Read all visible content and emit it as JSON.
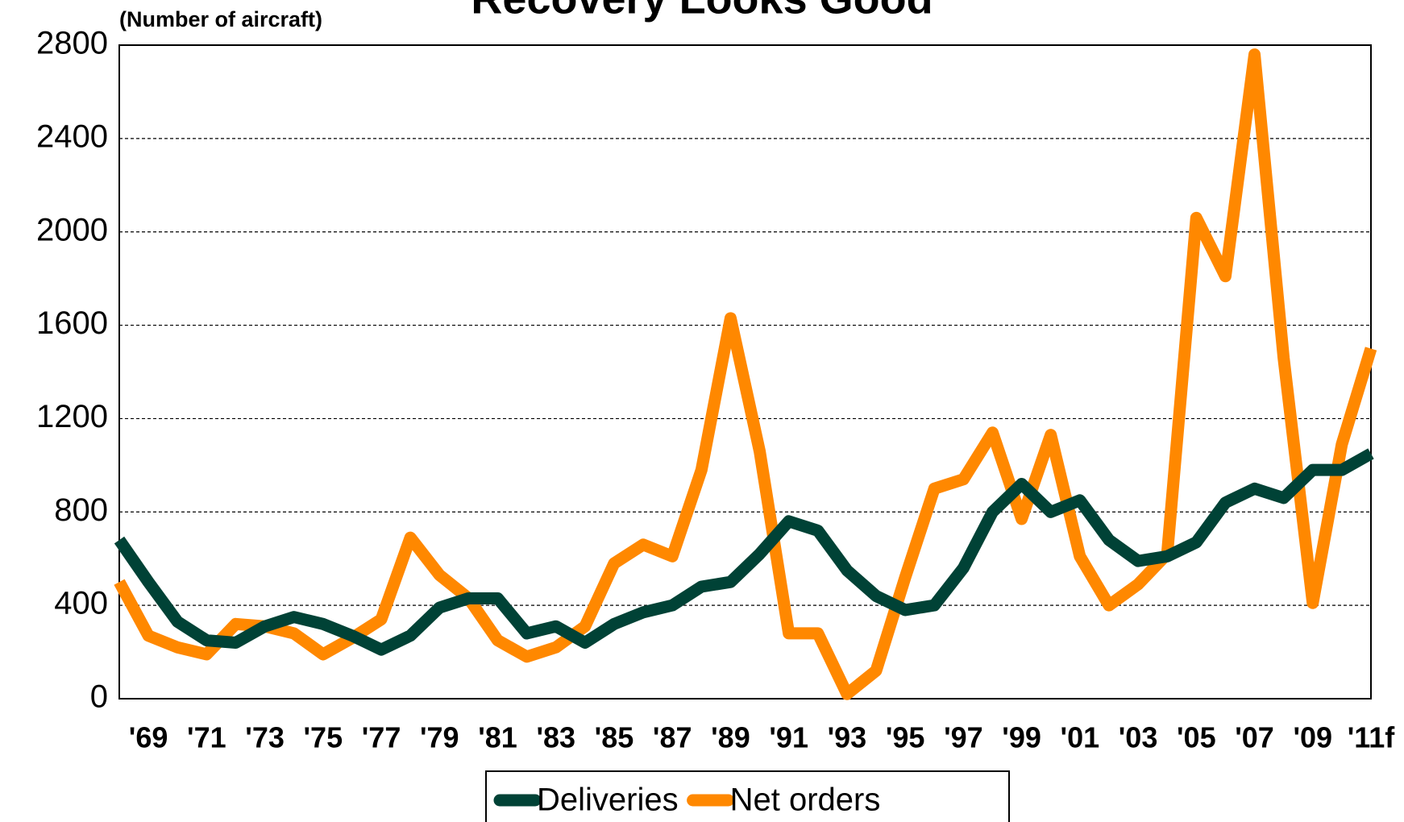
{
  "chart_data": {
    "type": "line",
    "title": "Recovery Looks Good",
    "y_label": "(Number of aircraft)",
    "categories": [
      null,
      "'69",
      null,
      "'71",
      null,
      "'73",
      null,
      "'75",
      null,
      "'77",
      null,
      "'79",
      null,
      "'81",
      null,
      "'83",
      null,
      "'85",
      null,
      "'87",
      null,
      "'89",
      null,
      "'91",
      null,
      "'93",
      null,
      "'95",
      null,
      "'97",
      null,
      "'99",
      null,
      "'01",
      null,
      "'03",
      null,
      "'05",
      null,
      "'07",
      null,
      "'09",
      null,
      "'11f"
    ],
    "series": [
      {
        "name": "Deliveries",
        "color": "#004236",
        "values": [
          680,
          500,
          330,
          250,
          240,
          310,
          350,
          320,
          270,
          210,
          270,
          390,
          430,
          430,
          280,
          310,
          240,
          320,
          370,
          400,
          480,
          500,
          620,
          760,
          720,
          550,
          440,
          380,
          400,
          560,
          800,
          920,
          800,
          850,
          680,
          590,
          610,
          670,
          840,
          900,
          860,
          980,
          980,
          1050
        ]
      },
      {
        "name": "Net orders",
        "color": "#ff8800",
        "values": [
          500,
          270,
          220,
          190,
          320,
          310,
          280,
          190,
          260,
          340,
          690,
          530,
          430,
          250,
          180,
          220,
          310,
          580,
          660,
          610,
          980,
          1630,
          1060,
          280,
          280,
          20,
          120,
          520,
          900,
          940,
          1140,
          770,
          1130,
          610,
          400,
          490,
          620,
          2060,
          1810,
          2760,
          1460,
          410,
          1090,
          1500
        ]
      }
    ],
    "ylim": [
      0,
      2800
    ],
    "yticks": [
      0,
      400,
      800,
      1200,
      1600,
      2000,
      2400,
      2800
    ],
    "grid": true
  }
}
